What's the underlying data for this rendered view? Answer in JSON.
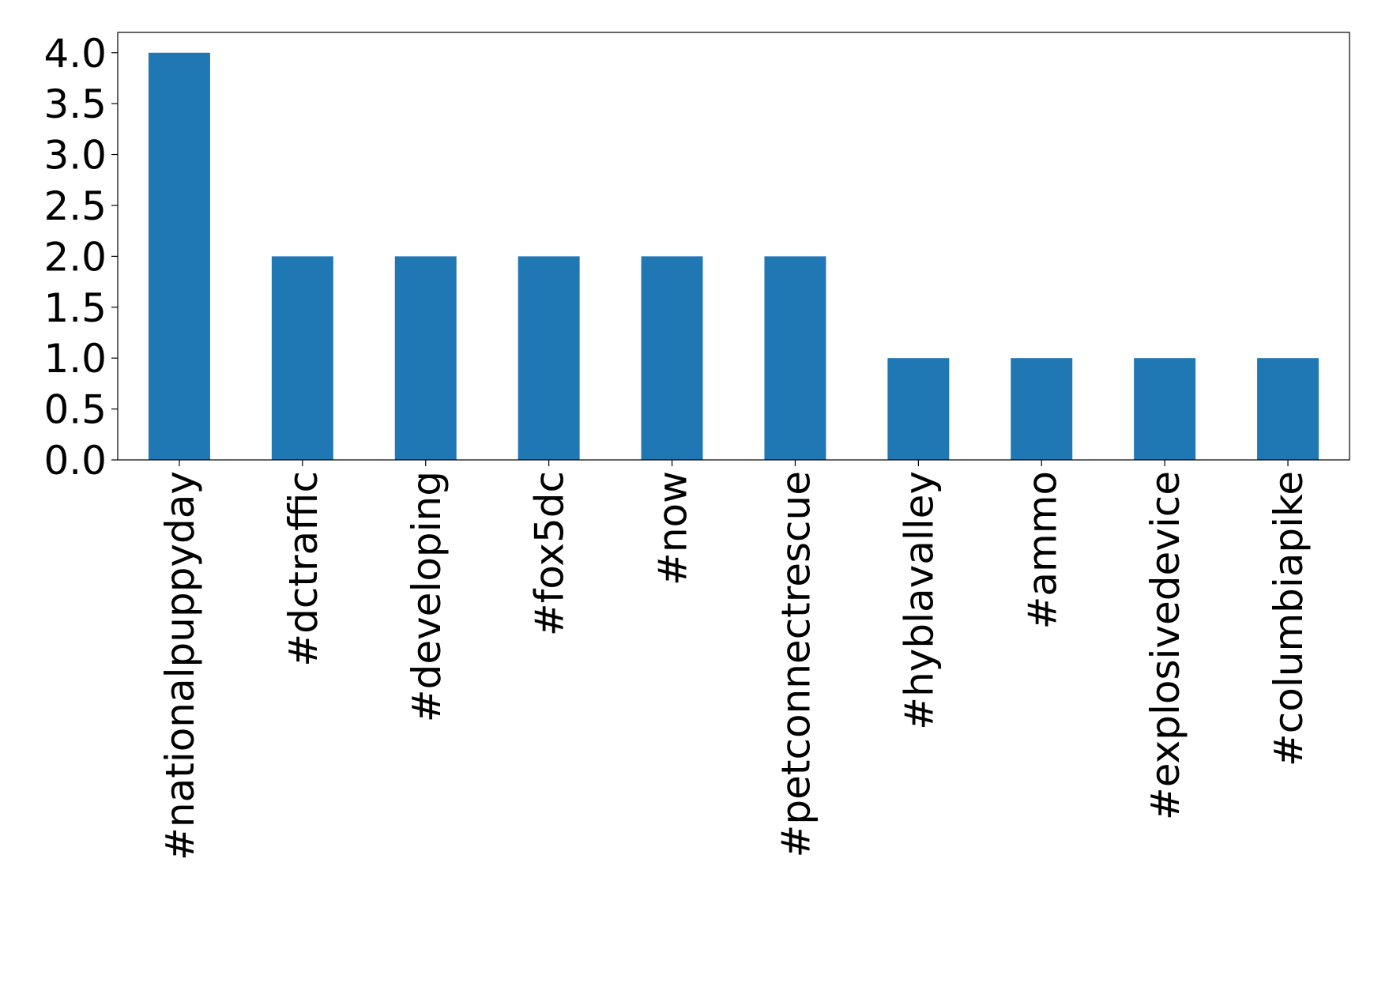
{
  "chart_data": {
    "type": "bar",
    "categories": [
      "#nationalpuppyday",
      "#dctraffic",
      "#developing",
      "#fox5dc",
      "#now",
      "#petconnectrescue",
      "#hyblavalley",
      "#ammo",
      "#explosivedevice",
      "#columbiapike"
    ],
    "values": [
      4,
      2,
      2,
      2,
      2,
      2,
      1,
      1,
      1,
      1
    ],
    "color": "#1f77b4",
    "ylim": [
      0,
      4.2
    ],
    "yticks": [
      {
        "value": 0,
        "label": "0.0"
      },
      0.5,
      {
        "value": 1,
        "label": "1.0"
      },
      1.5,
      {
        "value": 2,
        "label": "2.0"
      },
      2.5,
      {
        "value": 3,
        "label": "3.0"
      },
      3.5,
      {
        "value": 4,
        "label": "4.0"
      }
    ],
    "grid": false
  }
}
